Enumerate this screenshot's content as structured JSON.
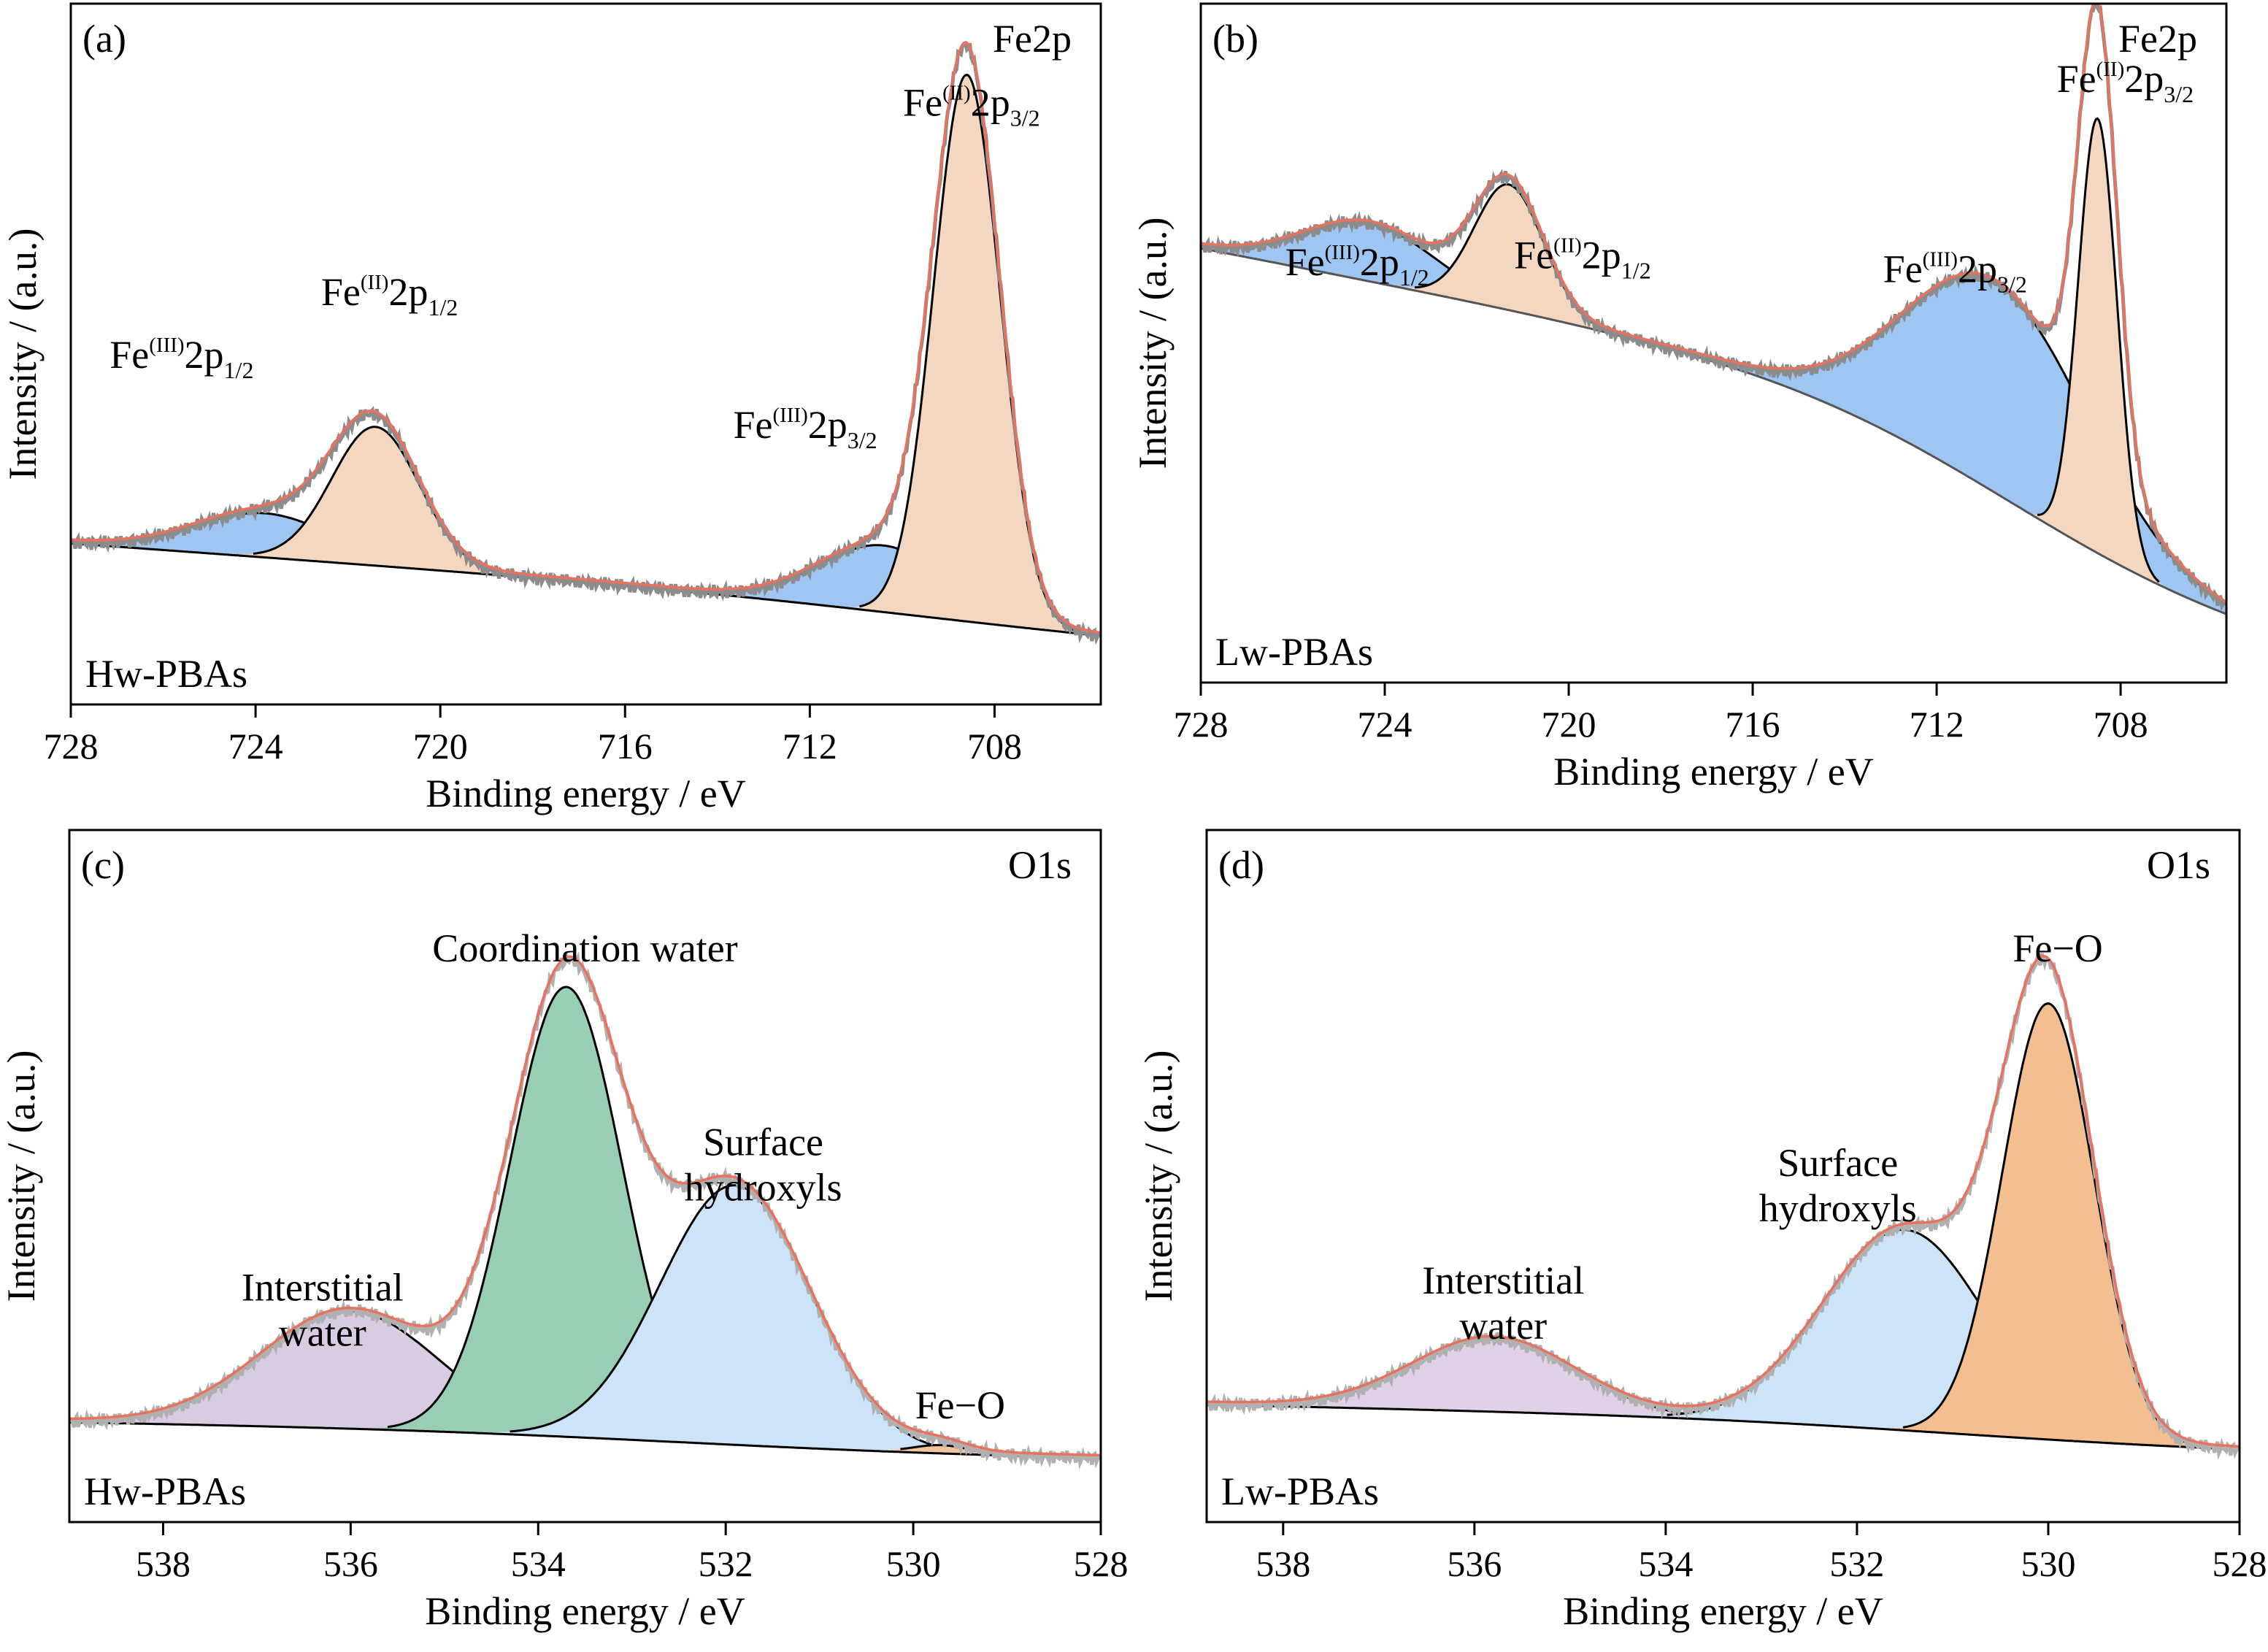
{
  "chart_data": [
    {
      "type": "area",
      "panel_label": "(a)",
      "corner_title": "Fe2p",
      "sample_label": "Hw-PBAs",
      "xlabel": "Binding energy / eV",
      "ylabel": "Intensity / (a.u.)",
      "xlim": [
        728,
        705.7
      ],
      "ylim": [
        0,
        1
      ],
      "xticks": [
        728,
        724,
        720,
        716,
        712,
        708
      ],
      "x_reversed": true,
      "colors": {
        "fe3": "#9ec6f2",
        "fe2": "#f4d7c0",
        "fit": "#e8725e",
        "raw": "#8c8c8c",
        "baseline": "#000000"
      },
      "baseline": {
        "left": 0.23,
        "right": 0.09,
        "step_center": 709.6,
        "step_width": 3.2,
        "step_fraction": 0.25
      },
      "peaks": [
        {
          "component": "fe3",
          "center": 723.8,
          "height": 0.063,
          "width": 1.5
        },
        {
          "component": "fe2",
          "center": 721.4,
          "height": 0.198,
          "width": 0.95
        },
        {
          "component": "fe3",
          "center": 710.4,
          "height": 0.095,
          "width": 1.4
        },
        {
          "component": "fe2",
          "center": 708.6,
          "height": 0.78,
          "width": 0.72
        }
      ],
      "annotations": [
        {
          "base": "Fe",
          "sup": "(III)",
          "core": "2p",
          "sub": "1/2",
          "x": 725.6,
          "y": 0.48
        },
        {
          "base": "Fe",
          "sup": "(II)",
          "core": "2p",
          "sub": "1/2",
          "x": 721.1,
          "y": 0.57
        },
        {
          "base": "Fe",
          "sup": "(III)",
          "core": "2p",
          "sub": "3/2",
          "x": 712.1,
          "y": 0.38
        },
        {
          "base": "Fe",
          "sup": "(II)",
          "core": "2p",
          "sub": "3/2",
          "x": 708.5,
          "y": 0.84
        }
      ]
    },
    {
      "type": "area",
      "panel_label": "(b)",
      "corner_title": "Fe2p",
      "sample_label": "Lw-PBAs",
      "xlabel": "Binding energy / eV",
      "ylabel": "Intensity / (a.u.)",
      "xlim": [
        728,
        705.7
      ],
      "ylim": [
        0,
        1
      ],
      "xticks": [
        728,
        724,
        720,
        716,
        712,
        708
      ],
      "x_reversed": true,
      "colors": {
        "fe3": "#9ec6f2",
        "fe2": "#f4d7c0",
        "fit": "#e8725e",
        "raw": "#8c8c8c",
        "baseline": "#555555"
      },
      "baseline": {
        "left": 0.64,
        "right": 0.06,
        "step_center": 710.4,
        "step_width": 2.6,
        "step_fraction": 0.5
      },
      "peaks": [
        {
          "component": "fe3",
          "center": 724.3,
          "height": 0.085,
          "width": 1.45
        },
        {
          "component": "fe2",
          "center": 721.3,
          "height": 0.185,
          "width": 0.75
        },
        {
          "component": "fe3",
          "center": 710.7,
          "height": 0.31,
          "width": 2.0
        },
        {
          "component": "fe2",
          "center": 708.5,
          "height": 0.64,
          "width": 0.42
        }
      ],
      "annotations": [
        {
          "base": "Fe",
          "sup": "(III)",
          "core": "2p",
          "sub": "1/2",
          "x": 724.6,
          "y": 0.6
        },
        {
          "base": "Fe",
          "sup": "(II)",
          "core": "2p",
          "sub": "1/2",
          "x": 719.7,
          "y": 0.61
        },
        {
          "base": "Fe",
          "sup": "(III)",
          "core": "2p",
          "sub": "3/2",
          "x": 711.6,
          "y": 0.59
        },
        {
          "base": "Fe",
          "sup": "(II)",
          "core": "2p",
          "sub": "3/2",
          "x": 707.9,
          "y": 0.87
        }
      ]
    },
    {
      "type": "area",
      "panel_label": "(c)",
      "corner_title": "O1s",
      "sample_label": "Hw-PBAs",
      "xlabel": "Binding energy / eV",
      "ylabel": "Intensity / (a.u.)",
      "xlim": [
        539,
        528
      ],
      "ylim": [
        0,
        1
      ],
      "xticks": [
        538,
        536,
        534,
        532,
        530,
        528
      ],
      "x_reversed": true,
      "colors": {
        "interstitial": "#d9cbe2",
        "coordination": "#98cfb4",
        "hydroxyl": "#cde4f8",
        "feo": "#f1c49c",
        "fit": "#e8725e",
        "raw": "#b0b0b0",
        "baseline": "#000000"
      },
      "baseline": {
        "left": 0.145,
        "right": 0.09,
        "step_center": 532.5,
        "step_width": 1.8,
        "step_fraction": 0.6
      },
      "peaks": [
        {
          "component": "interstitial",
          "center": 536.0,
          "height": 0.17,
          "width": 0.95
        },
        {
          "component": "coordination",
          "center": 533.7,
          "height": 0.65,
          "width": 0.6
        },
        {
          "component": "hydroxyl",
          "center": 531.9,
          "height": 0.375,
          "width": 0.8
        },
        {
          "component": "feo",
          "center": 529.7,
          "height": 0.012,
          "width": 0.3
        }
      ],
      "annotations": [
        {
          "text": "Coordination water",
          "x": 533.5,
          "y": 0.81
        },
        {
          "lines": [
            "Surface",
            "hydroxyls"
          ],
          "x": 531.6,
          "y": 0.53
        },
        {
          "lines": [
            "Interstitial",
            "water"
          ],
          "x": 536.3,
          "y": 0.32
        },
        {
          "text": "Fe−O",
          "x": 529.5,
          "y": 0.15
        }
      ]
    },
    {
      "type": "area",
      "panel_label": "(d)",
      "corner_title": "O1s",
      "sample_label": "Lw-PBAs",
      "xlabel": "Binding energy / eV",
      "ylabel": "Intensity / (a.u.)",
      "xlim": [
        538.8,
        528
      ],
      "ylim": [
        0,
        1
      ],
      "xticks": [
        538,
        536,
        534,
        532,
        530,
        528
      ],
      "x_reversed": true,
      "colors": {
        "interstitial": "#e0d0e8",
        "hydroxyl": "#cde4f8",
        "feo": "#f3be90",
        "fit": "#e8725e",
        "raw": "#b0b0b0",
        "baseline": "#000000"
      },
      "baseline": {
        "left": 0.17,
        "right": 0.1,
        "step_center": 531.0,
        "step_width": 1.6,
        "step_fraction": 0.55
      },
      "peaks": [
        {
          "component": "interstitial",
          "center": 535.8,
          "height": 0.105,
          "width": 0.85
        },
        {
          "component": "hydroxyl",
          "center": 531.5,
          "height": 0.29,
          "width": 0.85
        },
        {
          "component": "feo",
          "center": 530.0,
          "height": 0.63,
          "width": 0.48
        }
      ],
      "annotations": [
        {
          "text": "Fe−O",
          "x": 529.9,
          "y": 0.81
        },
        {
          "lines": [
            "Surface",
            "hydroxyls"
          ],
          "x": 532.2,
          "y": 0.5
        },
        {
          "lines": [
            "Interstitial",
            "water"
          ],
          "x": 535.7,
          "y": 0.33
        }
      ]
    }
  ]
}
